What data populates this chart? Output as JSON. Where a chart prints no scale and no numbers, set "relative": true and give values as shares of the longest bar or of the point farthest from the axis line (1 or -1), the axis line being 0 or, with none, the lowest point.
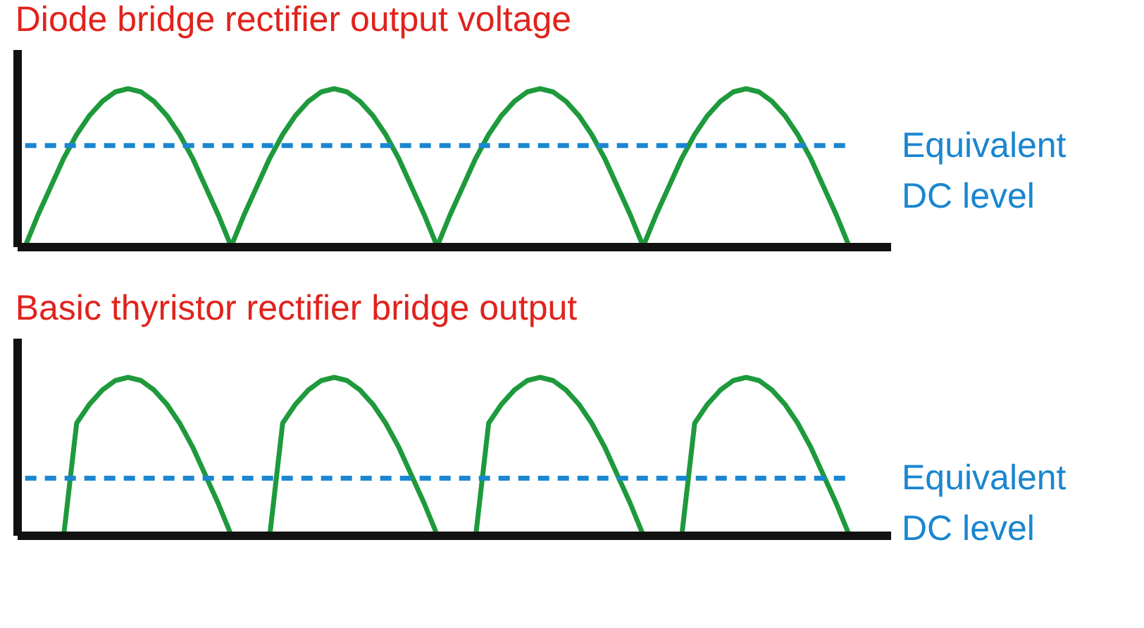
{
  "chart_data": [
    {
      "type": "line",
      "title": "Diode bridge rectifier output voltage",
      "relative": true,
      "categories": [
        null,
        null,
        null,
        null,
        null,
        null,
        null,
        null,
        null,
        null,
        null,
        null,
        null,
        null,
        null,
        null,
        null,
        null,
        null,
        null,
        null,
        null,
        null,
        null,
        null,
        null,
        null,
        null,
        null,
        null,
        null,
        null,
        null,
        null,
        null,
        null,
        null,
        null,
        null,
        null,
        null,
        null,
        null,
        null,
        null,
        null,
        null,
        null,
        null,
        null,
        null,
        null,
        null,
        null,
        null,
        null,
        null,
        null,
        null,
        null,
        null,
        null,
        null,
        null,
        null
      ],
      "series": [
        {
          "color": "#1e9a3c",
          "values": [
            0,
            0.2,
            0.38,
            0.56,
            0.71,
            0.83,
            0.92,
            0.98,
            1,
            0.98,
            0.92,
            0.83,
            0.71,
            0.56,
            0.38,
            0.2,
            0,
            0.2,
            0.38,
            0.56,
            0.71,
            0.83,
            0.92,
            0.98,
            1,
            0.98,
            0.92,
            0.83,
            0.71,
            0.56,
            0.38,
            0.2,
            0,
            0.2,
            0.38,
            0.56,
            0.71,
            0.83,
            0.92,
            0.98,
            1,
            0.98,
            0.92,
            0.83,
            0.71,
            0.56,
            0.38,
            0.2,
            0,
            0.2,
            0.38,
            0.56,
            0.71,
            0.83,
            0.92,
            0.98,
            1,
            0.98,
            0.92,
            0.83,
            0.71,
            0.56,
            0.38,
            0.2,
            0
          ]
        }
      ],
      "ref_lines": [
        {
          "axis": "y",
          "value": 0.64,
          "label": "Equivalent DC level",
          "color": "#1a86d0",
          "line_style": "dashed"
        }
      ],
      "tick_labels": false,
      "grid": false,
      "marker": "none",
      "line_style": "solid"
    },
    {
      "type": "line",
      "title": "Basic thyristor rectifier bridge output",
      "relative": true,
      "categories": [
        null,
        null,
        null,
        null,
        null,
        null,
        null,
        null,
        null,
        null,
        null,
        null,
        null,
        null,
        null,
        null,
        null,
        null,
        null,
        null,
        null,
        null,
        null,
        null,
        null,
        null,
        null,
        null,
        null,
        null,
        null,
        null,
        null,
        null,
        null,
        null,
        null,
        null,
        null,
        null,
        null,
        null,
        null,
        null,
        null,
        null,
        null,
        null,
        null,
        null,
        null,
        null,
        null,
        null,
        null,
        null,
        null,
        null,
        null,
        null,
        null,
        null,
        null,
        null,
        null
      ],
      "series": [
        {
          "color": "#1e9a3c",
          "values": [
            0,
            0,
            0,
            0,
            0.71,
            0.83,
            0.92,
            0.98,
            1,
            0.98,
            0.92,
            0.83,
            0.71,
            0.56,
            0.38,
            0.2,
            0,
            0,
            0,
            0,
            0.71,
            0.83,
            0.92,
            0.98,
            1,
            0.98,
            0.92,
            0.83,
            0.71,
            0.56,
            0.38,
            0.2,
            0,
            0,
            0,
            0,
            0.71,
            0.83,
            0.92,
            0.98,
            1,
            0.98,
            0.92,
            0.83,
            0.71,
            0.56,
            0.38,
            0.2,
            0,
            0,
            0,
            0,
            0.71,
            0.83,
            0.92,
            0.98,
            1,
            0.98,
            0.92,
            0.83,
            0.71,
            0.56,
            0.38,
            0.2,
            0
          ]
        }
      ],
      "ref_lines": [
        {
          "axis": "y",
          "value": 0.36,
          "label": "Equivalent DC level",
          "color": "#1a86d0",
          "line_style": "dashed"
        }
      ],
      "tick_labels": false,
      "grid": false,
      "marker": "none",
      "line_style": "solid"
    }
  ]
}
